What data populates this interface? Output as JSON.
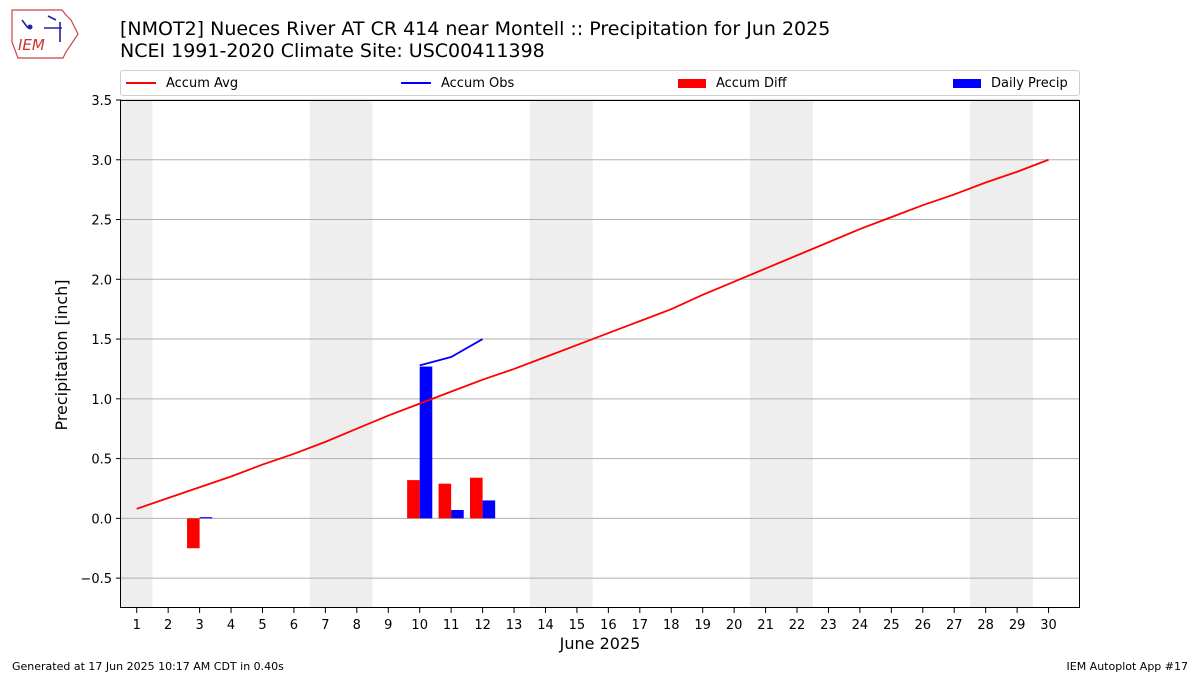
{
  "logo": {
    "text": "IEM"
  },
  "title": {
    "line1": "[NMOT2] Nueces River  AT CR 414 near Montell :: Precipitation for Jun 2025",
    "line2": "NCEI 1991-2020 Climate Site: USC00411398"
  },
  "legend": {
    "items": [
      {
        "label": "Accum Avg",
        "kind": "line",
        "color": "#ff0000"
      },
      {
        "label": "Accum Obs",
        "kind": "line",
        "color": "#0000ff"
      },
      {
        "label": "Accum Diff",
        "kind": "bar",
        "color": "#ff0000"
      },
      {
        "label": "Daily Precip",
        "kind": "bar",
        "color": "#0000ff"
      }
    ]
  },
  "footer": {
    "left": "Generated at 17 Jun 2025 10:17 AM CDT in 0.40s",
    "right": "IEM Autoplot App #17"
  },
  "chart_data": {
    "type": "line",
    "xlabel": "June 2025",
    "ylabel": "Precipitation [inch]",
    "xlim": [
      0.5,
      31
    ],
    "ylim": [
      -0.75,
      3.5
    ],
    "yticks": [
      -0.5,
      0.0,
      0.5,
      1.0,
      1.5,
      2.0,
      2.5,
      3.0,
      3.5
    ],
    "ytick_labels": [
      "−0.5",
      "0.0",
      "0.5",
      "1.0",
      "1.5",
      "2.0",
      "2.5",
      "3.0",
      "3.5"
    ],
    "xticks": [
      1,
      2,
      3,
      4,
      5,
      6,
      7,
      8,
      9,
      10,
      11,
      12,
      13,
      14,
      15,
      16,
      17,
      18,
      19,
      20,
      21,
      22,
      23,
      24,
      25,
      26,
      27,
      28,
      29,
      30
    ],
    "grid": "horizontal",
    "weekend_shading": [
      [
        0.5,
        1.5
      ],
      [
        6.5,
        8.5
      ],
      [
        13.5,
        15.5
      ],
      [
        20.5,
        22.5
      ],
      [
        27.5,
        29.5
      ]
    ],
    "series": [
      {
        "name": "Accum Avg",
        "kind": "line",
        "color": "#ff0000",
        "x": [
          1,
          2,
          3,
          4,
          5,
          6,
          7,
          8,
          9,
          10,
          11,
          12,
          13,
          14,
          15,
          16,
          17,
          18,
          19,
          20,
          21,
          22,
          23,
          24,
          25,
          26,
          27,
          28,
          29,
          30
        ],
        "values": [
          0.08,
          0.17,
          0.26,
          0.35,
          0.45,
          0.54,
          0.64,
          0.75,
          0.86,
          0.96,
          1.06,
          1.16,
          1.25,
          1.35,
          1.45,
          1.55,
          1.65,
          1.75,
          1.87,
          1.98,
          2.09,
          2.2,
          2.31,
          2.42,
          2.52,
          2.62,
          2.71,
          2.81,
          2.9,
          3.0
        ]
      },
      {
        "name": "Accum Obs",
        "kind": "line",
        "color": "#0000ff",
        "x": [
          10,
          11,
          12
        ],
        "values": [
          1.28,
          1.35,
          1.5
        ]
      },
      {
        "name": "Accum Diff",
        "kind": "bar",
        "color": "#ff0000",
        "x": [
          3,
          10,
          11,
          12
        ],
        "values": [
          -0.25,
          0.32,
          0.29,
          0.34
        ]
      },
      {
        "name": "Daily Precip",
        "kind": "bar",
        "color": "#0000ff",
        "x": [
          3,
          10,
          11,
          12
        ],
        "values": [
          0.01,
          1.27,
          0.07,
          0.15
        ]
      }
    ]
  }
}
